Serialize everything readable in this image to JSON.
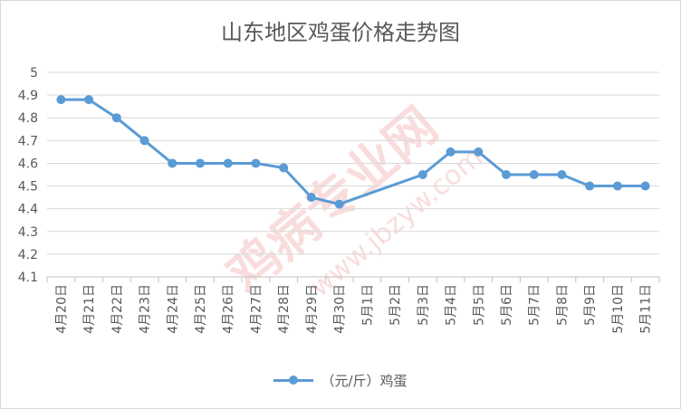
{
  "chart_data": {
    "type": "line",
    "title": "山东地区鸡蛋价格走势图",
    "categories": [
      "4月20日",
      "4月21日",
      "4月22日",
      "4月23日",
      "4月24日",
      "4月25日",
      "4月26日",
      "4月27日",
      "4月28日",
      "4月29日",
      "4月30日",
      "5月1日",
      "5月2日",
      "5月3日",
      "5月4日",
      "5月5日",
      "5月6日",
      "5月7日",
      "5月8日",
      "5月9日",
      "5月10日",
      "5月11日"
    ],
    "series": [
      {
        "name": "（元/斤）鸡蛋",
        "values": [
          4.88,
          4.88,
          4.8,
          4.7,
          4.6,
          4.6,
          4.6,
          4.6,
          4.58,
          4.45,
          4.42,
          null,
          null,
          4.55,
          4.65,
          4.65,
          4.55,
          4.55,
          4.55,
          4.5,
          4.5,
          4.5
        ],
        "color": "#5b9bd5"
      }
    ],
    "ylim": [
      4.1,
      5
    ],
    "yticks": [
      "5",
      "4.9",
      "4.8",
      "4.7",
      "4.6",
      "4.5",
      "4.4",
      "4.3",
      "4.2",
      "4.1"
    ],
    "grid": true,
    "legend_position": "bottom",
    "gap_handling": "connect"
  },
  "watermark": {
    "text_main": "鸡病专业网",
    "text_url": "www.jbzyw.com"
  }
}
